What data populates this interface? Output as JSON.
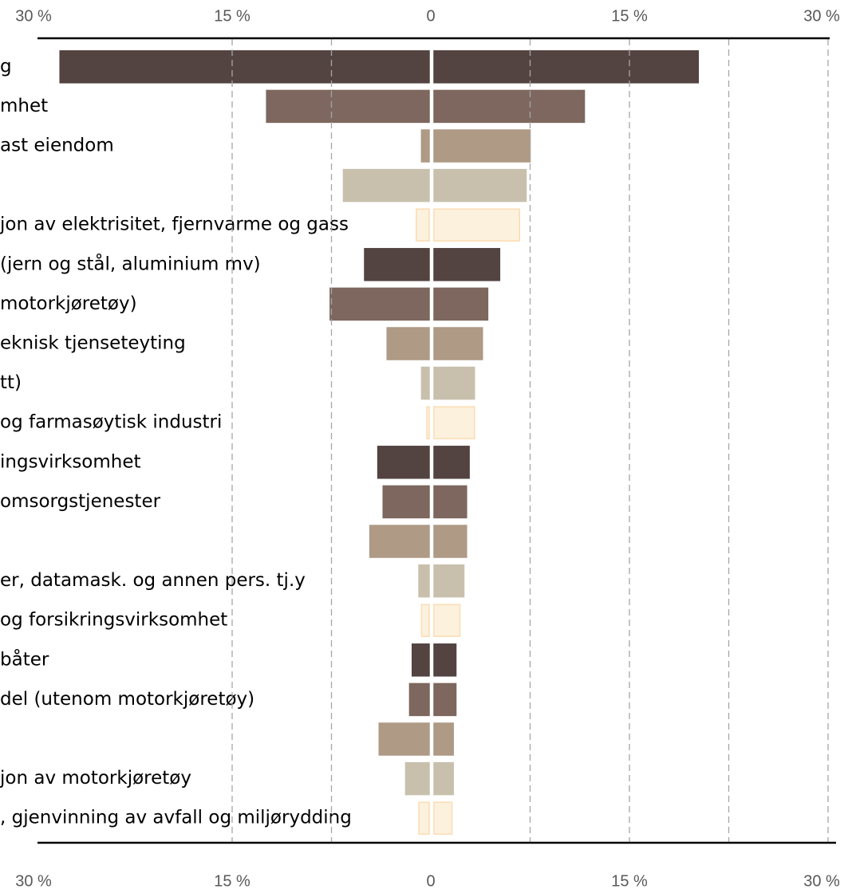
{
  "chart_data": {
    "type": "butterfly",
    "categories": [
      "g",
      "mhet",
      "ast eiendom",
      null,
      "jon av elektrisitet, fjernvarme og gass",
      "(jern og stål, aluminium mv)",
      "motorkjøretøy)",
      "eknisk tjenseteyting",
      "tt)",
      "og farmasøytisk industri",
      "ingsvirksomhet",
      "omsorgstjenester",
      null,
      "er, datamask. og annen pers. tj.y",
      "og forsikringsvirksomhet",
      "båter",
      "del (utenom motorkjøretøy)",
      null,
      "jon av motorkjøretøy",
      ", gjenvinning av avfall og miljørydding"
    ],
    "series": [
      {
        "values": [
          -28.0,
          -12.4,
          -0.7,
          -6.6,
          -1.1,
          -5.0,
          -7.6,
          -3.3,
          -0.7,
          -0.3,
          -4.0,
          -3.6,
          -4.6,
          -0.9,
          -0.7,
          -1.4,
          -1.6,
          -3.9,
          -1.9,
          -0.9
        ]
      },
      {
        "values": [
          20.2,
          11.6,
          7.5,
          7.2,
          6.7,
          5.2,
          4.3,
          3.9,
          3.3,
          3.3,
          2.9,
          2.7,
          2.7,
          2.5,
          2.2,
          1.9,
          1.9,
          1.7,
          1.7,
          1.6
        ]
      }
    ],
    "colors": [
      "#534341",
      "#7d675e",
      "#ae9a85",
      "#c8c0ad",
      "#fcf1dd",
      "#534341",
      "#7d675e",
      "#ae9a85",
      "#c8c0ad",
      "#fcf1dd",
      "#534341",
      "#7d675e",
      "#ae9a85",
      "#c8c0ad",
      "#fcf1dd",
      "#534341",
      "#7d675e",
      "#ae9a85",
      "#c8c0ad",
      "#fcf1dd"
    ],
    "edge_colors": [
      "#534341",
      "#7d675e",
      "#ae9a85",
      "#c8c0ad",
      "#fbdcb4",
      "#534341",
      "#7d675e",
      "#ae9a85",
      "#c8c0ad",
      "#fbdcb4",
      "#534341",
      "#7d675e",
      "#ae9a85",
      "#c8c0ad",
      "#fbdcb4",
      "#534341",
      "#7d675e",
      "#ae9a85",
      "#c8c0ad",
      "#fbdcb4"
    ],
    "xlim": [
      -30,
      30
    ],
    "xticks": [
      {
        "value": -30,
        "label": "30 %"
      },
      {
        "value": -15,
        "label": "15 %"
      },
      0,
      {
        "value": 15,
        "label": "15 %"
      },
      {
        "value": 30,
        "label": "30 %"
      }
    ],
    "grid_lines": [
      -15,
      -7.5,
      0,
      7.5,
      15,
      22.5,
      30
    ]
  }
}
